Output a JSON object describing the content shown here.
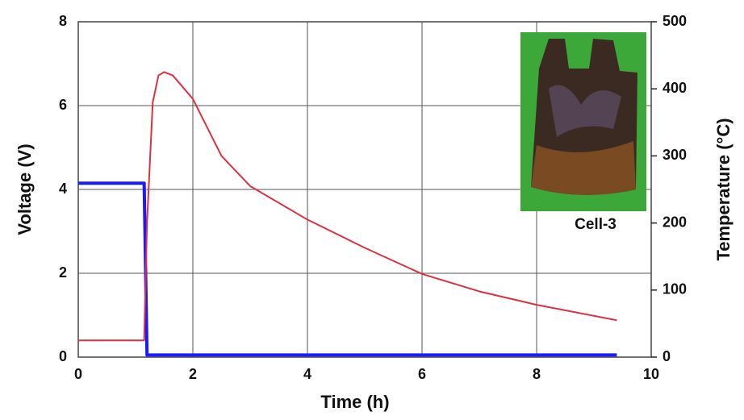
{
  "chart_data": {
    "type": "line",
    "xlabel": "Time (h)",
    "ylabel": "Voltage (V)",
    "y2label": "Temperature (°C)",
    "xlim": [
      0,
      10
    ],
    "xticks": [
      0,
      2,
      4,
      6,
      8,
      10
    ],
    "ylim": [
      0,
      8
    ],
    "yticks": [
      0,
      2,
      4,
      6,
      8
    ],
    "y2lim": [
      0,
      500
    ],
    "y2ticks": [
      0,
      100,
      200,
      300,
      400,
      500
    ],
    "grid": true,
    "annotation": "Cell-3",
    "series": [
      {
        "color": "#1a1aff",
        "x": [
          0,
          1.15,
          1.2,
          9.4
        ],
        "values": [
          4.15,
          4.15,
          0.05,
          0.05
        ]
      },
      {
        "color": "#e0303f",
        "axis": "y2",
        "x": [
          0,
          1.15,
          1.2,
          1.3,
          1.4,
          1.5,
          1.65,
          2,
          2.5,
          3,
          4,
          5,
          6,
          7,
          8,
          9.4
        ],
        "values": [
          25,
          25,
          200,
          380,
          420,
          425,
          420,
          385,
          300,
          255,
          205,
          163,
          124,
          98,
          78,
          55
        ]
      }
    ]
  }
}
